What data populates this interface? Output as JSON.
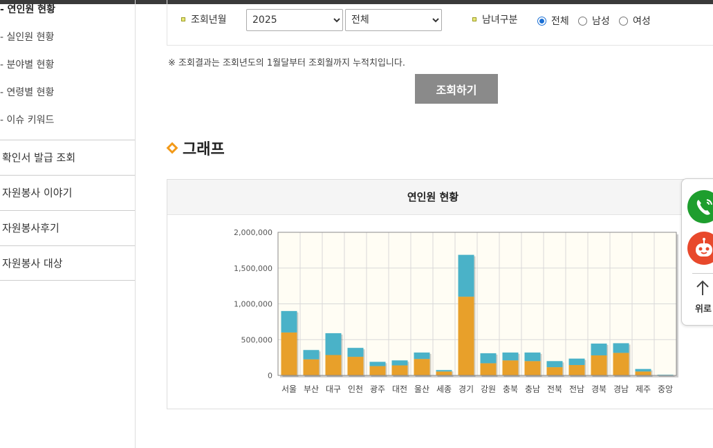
{
  "sidebar": {
    "sub_items": [
      "- 연인원 현황",
      "- 실인원 현황",
      "- 분야별 현황",
      "- 연령별 현황",
      "- 이슈 키워드"
    ],
    "menu_items": [
      "확인서 발급 조회",
      "자원봉사 이야기",
      "자원봉사후기",
      "자원봉사 대상"
    ]
  },
  "search": {
    "period_label": "조회년월",
    "year_value": "2025",
    "month_value": "전체",
    "gender_label": "남녀구분",
    "gender_options": [
      "전체",
      "남성",
      "여성"
    ],
    "gender_selected": "전체",
    "notice": "※ 조회결과는 조회년도의 1월달부터 조회월까지 누적치입니다.",
    "button_label": "조회하기"
  },
  "graph_section": {
    "title": "그래프"
  },
  "chart_data": {
    "type": "bar",
    "title": "연인원 현황",
    "stacked": true,
    "categories": [
      "서울",
      "부산",
      "대구",
      "인천",
      "광주",
      "대전",
      "울산",
      "세종",
      "경기",
      "강원",
      "충북",
      "충남",
      "전북",
      "전남",
      "경북",
      "경남",
      "제주",
      "중앙"
    ],
    "series": [
      {
        "values": [
          600000,
          225000,
          285000,
          260000,
          130000,
          140000,
          230000,
          55000,
          1100000,
          170000,
          210000,
          200000,
          115000,
          145000,
          280000,
          315000,
          55000,
          3000
        ],
        "color": "#e8a02a"
      },
      {
        "values": [
          300000,
          130000,
          305000,
          125000,
          60000,
          70000,
          90000,
          20000,
          585000,
          140000,
          110000,
          120000,
          85000,
          90000,
          165000,
          135000,
          35000,
          7000
        ],
        "color": "#4ab2c8"
      }
    ],
    "ylim": [
      0,
      2000000
    ],
    "yticks": [
      "2,000,000",
      "1,500,000",
      "1,000,000",
      "500,000",
      "0"
    ],
    "grid": true,
    "legend": "none"
  },
  "float_panel": {
    "icons": [
      "phone-icon",
      "chatbot-icon",
      "arrow-up-icon"
    ],
    "top_label": "위로"
  },
  "colors": {
    "button_gray": "#8a8a8a",
    "accent_orange": "#f29a1a",
    "call_green": "#1e9e2e",
    "bot_red": "#e8492c",
    "radio_blue": "#1a6fd4"
  }
}
